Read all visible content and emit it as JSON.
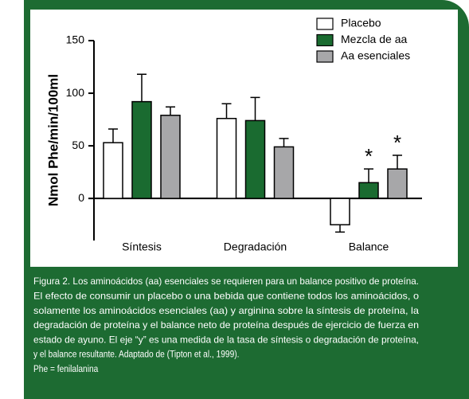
{
  "chart_data": {
    "type": "bar",
    "y_label": "Nmol Phe/min/100ml",
    "categories": [
      "Síntesis",
      "Degradación",
      "Balance"
    ],
    "series": [
      {
        "name": "Placebo",
        "color": "#ffffff",
        "values": [
          53,
          76,
          -25
        ],
        "errors": [
          13,
          14,
          7
        ]
      },
      {
        "name": "Mezcla de aa",
        "color": "#1a6b30",
        "values": [
          92,
          74,
          15
        ],
        "errors": [
          26,
          22,
          13
        ]
      },
      {
        "name": "Aa esenciales",
        "color": "#a7a7a9",
        "values": [
          79,
          49,
          28
        ],
        "errors": [
          8,
          8,
          13
        ]
      }
    ],
    "annotations": [
      {
        "text": "*",
        "series": 1,
        "category": 2
      },
      {
        "text": "*",
        "series": 2,
        "category": 2
      }
    ],
    "ylim": [
      -40,
      150
    ],
    "yticks": [
      0,
      50,
      100,
      150
    ],
    "legend": "top-right"
  },
  "caption": [
    "Figura 2. Los aminoácidos (aa) esenciales se requieren para un balance positivo de proteína.",
    "El efecto de consumir un placebo o una bebida que contiene todos los aminoácidos, o",
    "solamente los aminoácidos esenciales (aa) y arginina sobre la síntesis de proteína, la",
    "degradación de proteína y el balance neto de proteína después de ejercicio de fuerza en",
    "estado de ayuno. El eje “y” es una medida de la tasa de síntesis o degradación de proteína,",
    "y el balance resultante. Adaptado de (Tipton et al., 1999).",
    "Phe = fenilalanina"
  ]
}
